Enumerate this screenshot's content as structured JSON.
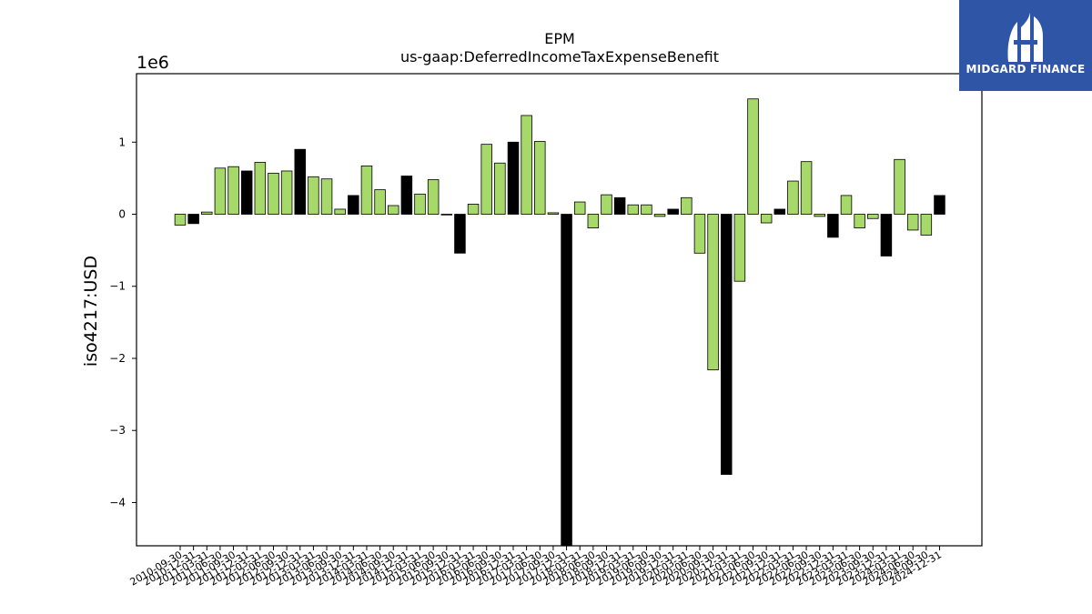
{
  "chart_data": {
    "type": "bar",
    "title": "EPM",
    "subtitle": "us-gaap:DeferredIncomeTaxExpenseBenefit",
    "ylabel": "iso4217:USD",
    "xlabel": "",
    "y_multiplier_label": "1e6",
    "y_ticks": [
      "1",
      "0",
      "−1",
      "−2",
      "−3",
      "−4"
    ],
    "y_tick_values": [
      1,
      0,
      -1,
      -2,
      -3,
      -4
    ],
    "ylim": [
      -4.6,
      1.95
    ],
    "grid": false,
    "colors": {
      "quarter": "#a6d96a",
      "annual": "#000000"
    },
    "categories": [
      "2010-09-30",
      "2010-12-31",
      "2011-03-31",
      "2011-06-30",
      "2011-09-30",
      "2011-12-31",
      "2012-03-31",
      "2012-06-30",
      "2012-09-30",
      "2012-12-31",
      "2013-03-31",
      "2013-06-30",
      "2013-09-30",
      "2013-12-31",
      "2014-03-31",
      "2014-06-30",
      "2014-09-30",
      "2014-12-31",
      "2015-03-31",
      "2015-06-30",
      "2015-09-30",
      "2015-12-31",
      "2016-03-31",
      "2016-06-30",
      "2016-09-30",
      "2016-12-31",
      "2017-03-31",
      "2017-06-30",
      "2017-09-30",
      "2017-12-31",
      "2018-03-31",
      "2018-06-30",
      "2018-09-30",
      "2018-12-31",
      "2019-03-31",
      "2019-06-30",
      "2019-09-30",
      "2019-12-31",
      "2020-03-31",
      "2020-06-30",
      "2020-09-30",
      "2020-12-31",
      "2021-03-31",
      "2021-06-30",
      "2021-09-30",
      "2021-12-31",
      "2022-03-31",
      "2022-06-30",
      "2022-09-30",
      "2022-12-31",
      "2023-03-31",
      "2023-06-30",
      "2023-09-30",
      "2023-12-31",
      "2024-03-31",
      "2024-06-30",
      "2024-09-30",
      "2024-12-31"
    ],
    "values": [
      -0.15,
      -0.13,
      0.03,
      0.64,
      0.66,
      0.6,
      0.72,
      0.57,
      0.6,
      0.9,
      0.52,
      0.49,
      0.07,
      0.26,
      0.67,
      0.34,
      0.12,
      0.53,
      0.28,
      0.48,
      -0.01,
      -0.54,
      0.14,
      0.97,
      0.71,
      1.0,
      1.37,
      1.01,
      0.02,
      -4.65,
      0.17,
      -0.19,
      0.27,
      0.23,
      0.13,
      0.13,
      -0.03,
      0.07,
      0.23,
      -0.54,
      -2.16,
      -3.61,
      -0.93,
      1.6,
      -0.12,
      0.07,
      0.46,
      0.73,
      -0.03,
      -0.32,
      0.26,
      -0.19,
      -0.06,
      -0.58,
      0.76,
      -0.22,
      -0.29,
      0.26
    ],
    "bar_kind": [
      "q",
      "a",
      "q",
      "q",
      "q",
      "a",
      "q",
      "q",
      "q",
      "a",
      "q",
      "q",
      "q",
      "a",
      "q",
      "q",
      "q",
      "a",
      "q",
      "q",
      "q",
      "a",
      "q",
      "q",
      "q",
      "a",
      "q",
      "q",
      "q",
      "a",
      "q",
      "q",
      "q",
      "a",
      "q",
      "q",
      "q",
      "a",
      "q",
      "q",
      "q",
      "a",
      "q",
      "q",
      "q",
      "a",
      "q",
      "q",
      "q",
      "a",
      "q",
      "q",
      "q",
      "a",
      "q",
      "q",
      "q",
      "a"
    ]
  },
  "logo": {
    "text": "MIDGARD FINANCE",
    "icon": "midgard-logo-icon",
    "background": "#2f56a6"
  }
}
